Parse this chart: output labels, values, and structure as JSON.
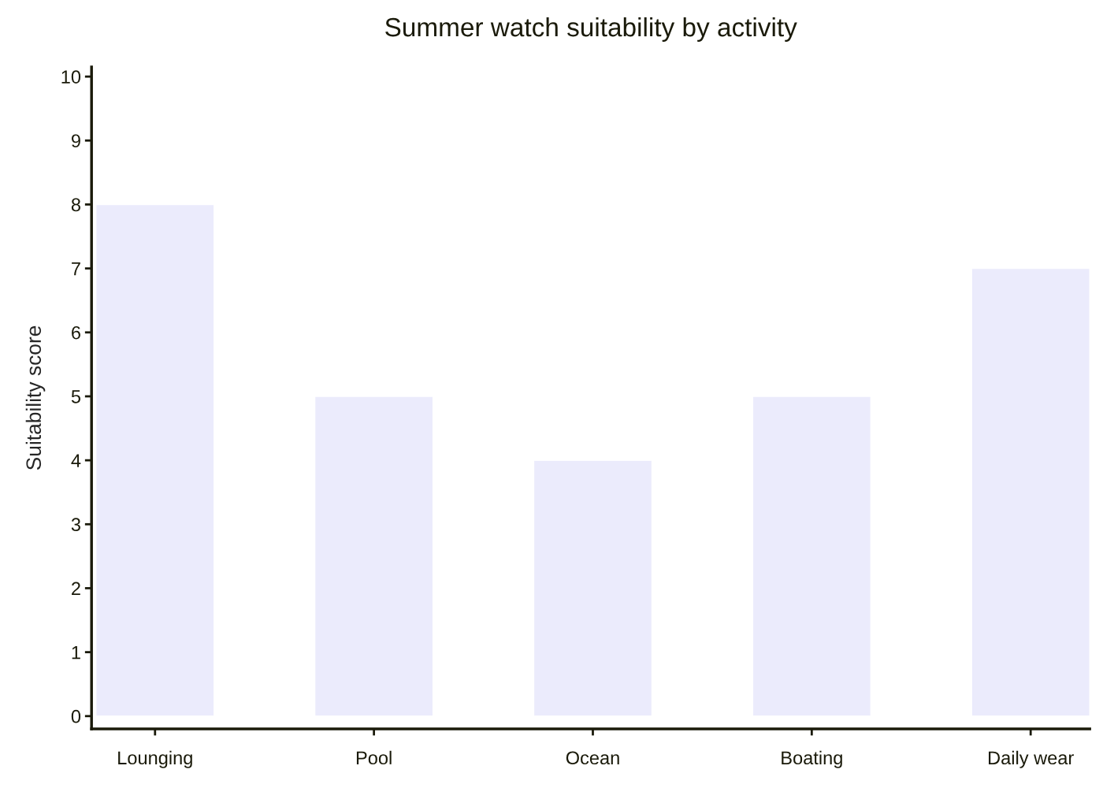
{
  "chart_data": {
    "type": "bar",
    "title": "Summer watch suitability by activity",
    "ylabel": "Suitability score",
    "categories": [
      "Lounging",
      "Pool",
      "Ocean",
      "Boating",
      "Daily wear"
    ],
    "values": [
      8,
      5,
      4,
      5,
      7
    ],
    "color": "#ebebfc",
    "ylim": [
      -0.2,
      10.15
    ],
    "yticks": [
      0,
      1,
      2,
      3,
      4,
      5,
      6,
      7,
      8,
      9,
      10
    ],
    "grid": false
  }
}
